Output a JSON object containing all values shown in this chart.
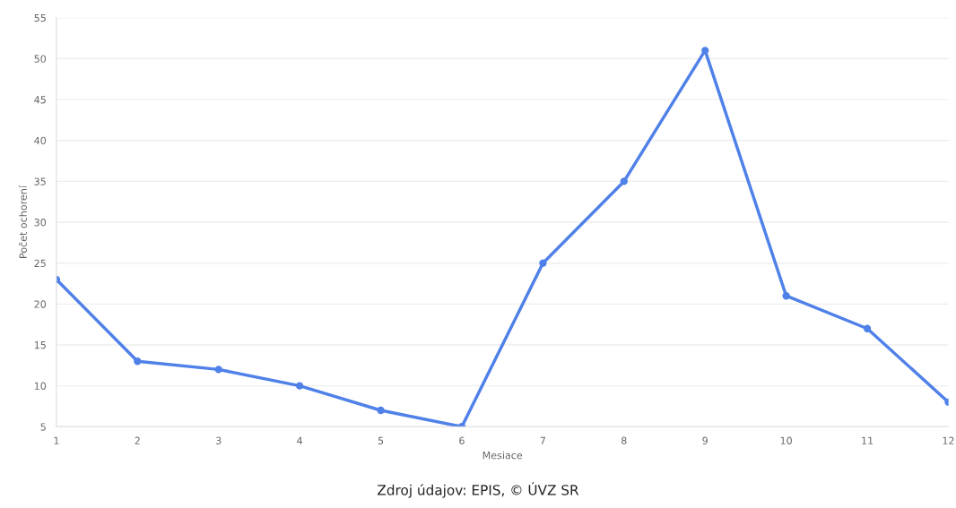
{
  "chart_data": {
    "type": "line",
    "categories": [
      "1",
      "2",
      "3",
      "4",
      "5",
      "6",
      "7",
      "8",
      "9",
      "10",
      "11",
      "12"
    ],
    "series": [
      {
        "color": "#4f81e8",
        "values": [
          23,
          13,
          12,
          10,
          7,
          5,
          25,
          35,
          51,
          21,
          17,
          8
        ]
      }
    ],
    "xlabel": "Mesiace",
    "ylabel": "Počet ochorení",
    "ylim": [
      5,
      55
    ],
    "yticks": [
      5,
      10,
      15,
      20,
      25,
      30,
      35,
      40,
      45,
      50,
      55
    ],
    "grid": "y",
    "marker": "circle",
    "line_style": "solid",
    "annotations": [
      "Zdroj údajov: EPIS, © ÚVZ SR"
    ]
  }
}
